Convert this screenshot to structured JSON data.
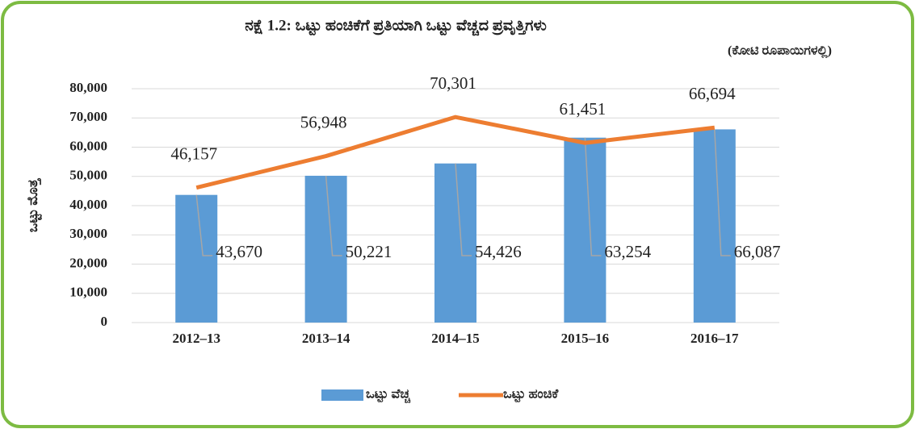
{
  "chart_data": {
    "type": "bar",
    "title": "ನಕ್ಷೆ 1.2: ಒಟ್ಟು ಹಂಚಿಕೆಗೆ ಪ್ರತಿಯಾಗಿ ಒಟ್ಟು ವೆಚ್ಚದ ಪ್ರವೃತ್ತಿಗಳು",
    "subtitle": "(ಕೋಟಿ ರೂಪಾಯಿಗಳಲ್ಲಿ)",
    "y_label": "ಒಟ್ಟು ಮೊತ್ತ",
    "categories": [
      "2012–13",
      "2013–14",
      "2014–15",
      "2015–16",
      "2016–17"
    ],
    "series": [
      {
        "name": "ಒಟ್ಟು ವೆಚ್ಚ",
        "type": "bar",
        "color": "#5b9bd5",
        "values": [
          43670,
          50221,
          54426,
          63254,
          66087
        ],
        "value_labels": [
          "43,670",
          "50,221",
          "54,426",
          "63,254",
          "66,087"
        ]
      },
      {
        "name": "ಒಟ್ಟು ಹಂಚಿಕೆ",
        "type": "line",
        "color": "#ed7d31",
        "values": [
          46157,
          56948,
          70301,
          61451,
          66694
        ],
        "value_labels": [
          "46,157",
          "56,948",
          "70,301",
          "61,451",
          "66,694"
        ]
      }
    ],
    "ylim": [
      0,
      80000
    ],
    "yticks": [
      0,
      {
        "value": 10000,
        "label": "10,000"
      },
      {
        "value": 20000,
        "label": "20,000"
      },
      {
        "value": 30000,
        "label": "30,000"
      },
      {
        "value": 40000,
        "label": "40,000"
      },
      {
        "value": 50000,
        "label": "50,000"
      },
      {
        "value": 60000,
        "label": "60,000"
      },
      {
        "value": 70000,
        "label": "70,000"
      },
      {
        "value": 80000,
        "label": "80,000"
      }
    ],
    "grid": true,
    "legend": "bottom"
  }
}
